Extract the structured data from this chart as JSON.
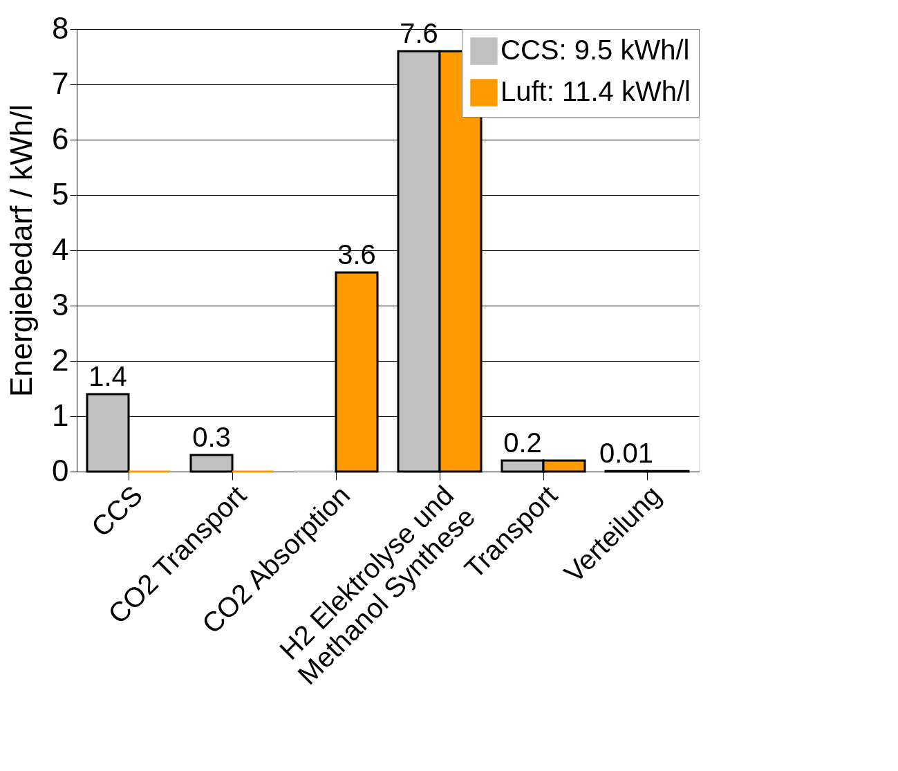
{
  "chart_data": {
    "type": "bar",
    "ylabel": "Energiebedarf / kWh/l",
    "categories": [
      "CCS",
      "CO2 Transport",
      "CO2 Absorption",
      "H2 Elektrolyse und Methanol Synthese",
      "Transport",
      "Verteilung"
    ],
    "series": [
      {
        "name": "CCS: 9.5 kWh/l",
        "color": "#c0c0c0",
        "values": [
          1.4,
          0.3,
          0,
          7.6,
          0.2,
          0.01
        ],
        "value_labels": [
          "1.4",
          "0.3",
          null,
          "7.6",
          "0.2",
          "0.01"
        ]
      },
      {
        "name": "Luft: 11.4 kWh/l",
        "color": "#ff9900",
        "values": [
          0,
          0,
          3.6,
          7.6,
          0.2,
          0.01
        ],
        "value_labels": [
          null,
          null,
          "3.6",
          null,
          null,
          null
        ]
      }
    ],
    "ylim": [
      0,
      8
    ],
    "yticks": [
      0,
      1,
      2,
      3,
      4,
      5,
      6,
      7,
      8
    ],
    "grid": "y",
    "legend": "top right"
  }
}
